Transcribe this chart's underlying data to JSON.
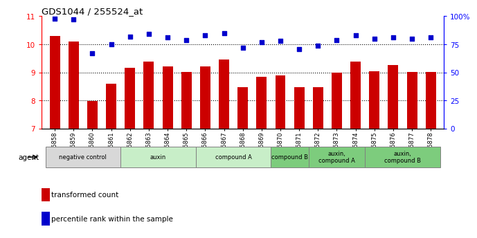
{
  "title": "GDS1044 / 255524_at",
  "samples": [
    "GSM25858",
    "GSM25859",
    "GSM25860",
    "GSM25861",
    "GSM25862",
    "GSM25863",
    "GSM25864",
    "GSM25865",
    "GSM25866",
    "GSM25867",
    "GSM25868",
    "GSM25869",
    "GSM25870",
    "GSM25871",
    "GSM25872",
    "GSM25873",
    "GSM25874",
    "GSM25875",
    "GSM25876",
    "GSM25877",
    "GSM25878"
  ],
  "bar_values": [
    10.3,
    10.1,
    7.99,
    8.6,
    9.15,
    9.38,
    9.22,
    9.02,
    9.22,
    9.47,
    8.47,
    8.85,
    8.88,
    8.47,
    8.47,
    9.0,
    9.38,
    9.05,
    9.25,
    9.02,
    9.02
  ],
  "scatter_values": [
    98,
    97,
    67,
    75,
    82,
    84,
    81,
    79,
    83,
    85,
    72,
    77,
    78,
    71,
    74,
    79,
    83,
    80,
    81,
    80,
    81
  ],
  "bar_color": "#cc0000",
  "scatter_color": "#0000cc",
  "ylim_left": [
    7,
    11
  ],
  "ylim_right": [
    0,
    100
  ],
  "yticks_left": [
    7,
    8,
    9,
    10,
    11
  ],
  "yticks_right": [
    0,
    25,
    50,
    75,
    100
  ],
  "ytick_labels_right": [
    "0",
    "25",
    "50",
    "75",
    "100%"
  ],
  "groups": [
    {
      "label": "negative control",
      "start": 0,
      "end": 3,
      "color": "#d8d8d8"
    },
    {
      "label": "auxin",
      "start": 4,
      "end": 7,
      "color": "#c8eec8"
    },
    {
      "label": "compound A",
      "start": 8,
      "end": 11,
      "color": "#c8eec8"
    },
    {
      "label": "compound B",
      "start": 12,
      "end": 13,
      "color": "#7dcc7d"
    },
    {
      "label": "auxin,\ncompound A",
      "start": 14,
      "end": 16,
      "color": "#7dcc7d"
    },
    {
      "label": "auxin,\ncompound B",
      "start": 17,
      "end": 20,
      "color": "#7dcc7d"
    }
  ],
  "legend_bar_label": "transformed count",
  "legend_scatter_label": "percentile rank within the sample",
  "agent_label": "agent",
  "bar_width": 0.55
}
